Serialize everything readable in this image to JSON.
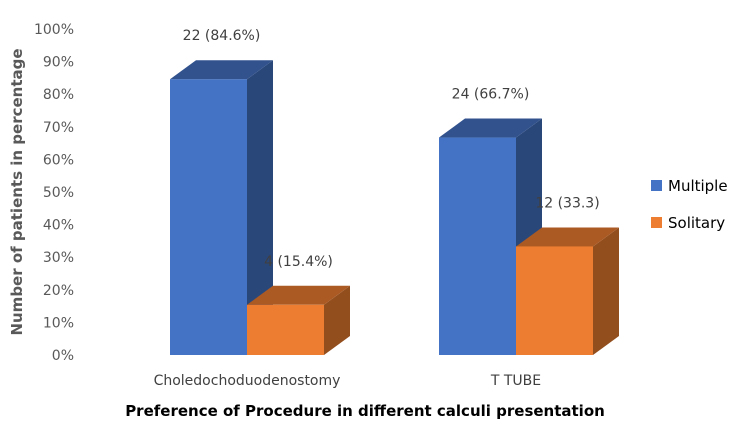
{
  "chart_data": {
    "type": "bar",
    "title": "",
    "xlabel": "Preference of Procedure in different calculi presentation",
    "ylabel": "Number of patients in percentage",
    "categories": [
      "Choledochoduodenostomy",
      "T TUBE"
    ],
    "ylim": [
      0,
      100
    ],
    "yticks": [
      "0%",
      "10%",
      "20%",
      "30%",
      "40%",
      "50%",
      "60%",
      "70%",
      "80%",
      "90%",
      "100%"
    ],
    "grid": false,
    "legend_position": "right",
    "series": [
      {
        "name": "Multiple",
        "color": "#4472C4",
        "values": [
          84.6,
          66.7
        ],
        "labels": [
          "22 (84.6%)",
          "24 (66.7%)"
        ]
      },
      {
        "name": "Solitary",
        "color": "#ED7D31",
        "values": [
          15.4,
          33.3
        ],
        "labels": [
          "4 (15.4%)",
          "12 (33.3)"
        ]
      }
    ]
  }
}
